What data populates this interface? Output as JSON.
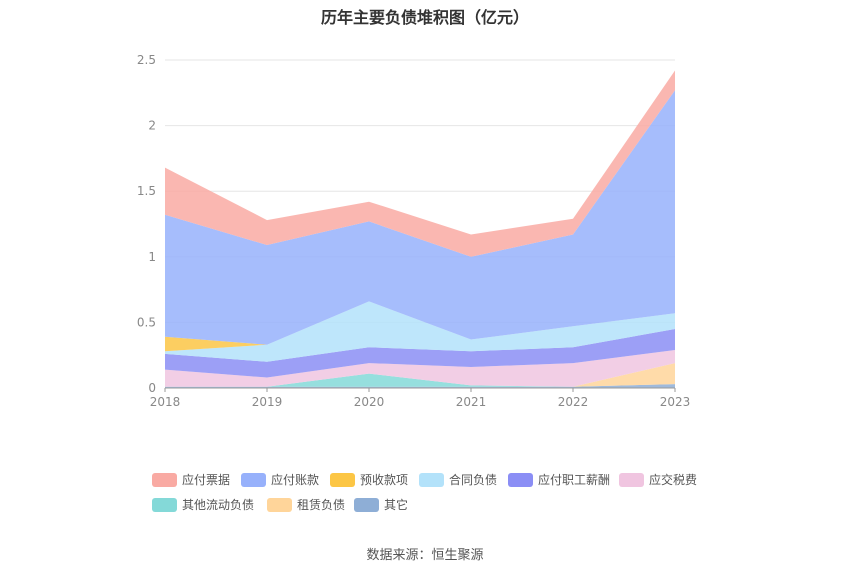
{
  "title": "历年主要负债堆积图（亿元）",
  "source": "数据来源：恒生聚源",
  "chart_data": {
    "type": "area",
    "stacked": true,
    "title": "历年主要负债堆积图（亿元）",
    "categories": [
      "2018",
      "2019",
      "2020",
      "2021",
      "2022",
      "2023"
    ],
    "ylim": [
      0,
      2.5
    ],
    "yticks": [
      "0",
      "0.5",
      "1",
      "1.5",
      "2",
      "2.5"
    ],
    "grid": true,
    "legend_position": "bottom",
    "series": [
      {
        "name": "其它",
        "color": "#8eaed6",
        "values": [
          0.01,
          0.01,
          0.01,
          0.01,
          0.01,
          0.03
        ]
      },
      {
        "name": "租赁负债",
        "color": "#ffd59a",
        "values": [
          0.0,
          0.0,
          0.0,
          0.0,
          0.0,
          0.16
        ]
      },
      {
        "name": "其他流动负债",
        "color": "#84d9d8",
        "values": [
          0.0,
          0.0,
          0.1,
          0.01,
          0.0,
          0.0
        ]
      },
      {
        "name": "应交税费",
        "color": "#f0c5e0",
        "values": [
          0.13,
          0.07,
          0.08,
          0.14,
          0.18,
          0.1
        ]
      },
      {
        "name": "应付职工薪酬",
        "color": "#8b8ef5",
        "values": [
          0.12,
          0.12,
          0.12,
          0.12,
          0.12,
          0.16
        ]
      },
      {
        "name": "合同负债",
        "color": "#b3e2fa",
        "values": [
          0.02,
          0.13,
          0.35,
          0.09,
          0.16,
          0.12
        ]
      },
      {
        "name": "预收款项",
        "color": "#fcc645",
        "values": [
          0.11,
          0.0,
          0.0,
          0.0,
          0.0,
          0.0
        ]
      },
      {
        "name": "应付账款",
        "color": "#97b1fb",
        "values": [
          0.93,
          0.76,
          0.61,
          0.63,
          0.7,
          1.7
        ]
      },
      {
        "name": "应付票据",
        "color": "#f9aaa3",
        "values": [
          0.36,
          0.19,
          0.15,
          0.17,
          0.12,
          0.15
        ]
      }
    ],
    "legend_order": [
      "应付票据",
      "应付账款",
      "预收款项",
      "合同负债",
      "应付职工薪酬",
      "应交税费",
      "其他流动负债",
      "租赁负债",
      "其它"
    ]
  }
}
